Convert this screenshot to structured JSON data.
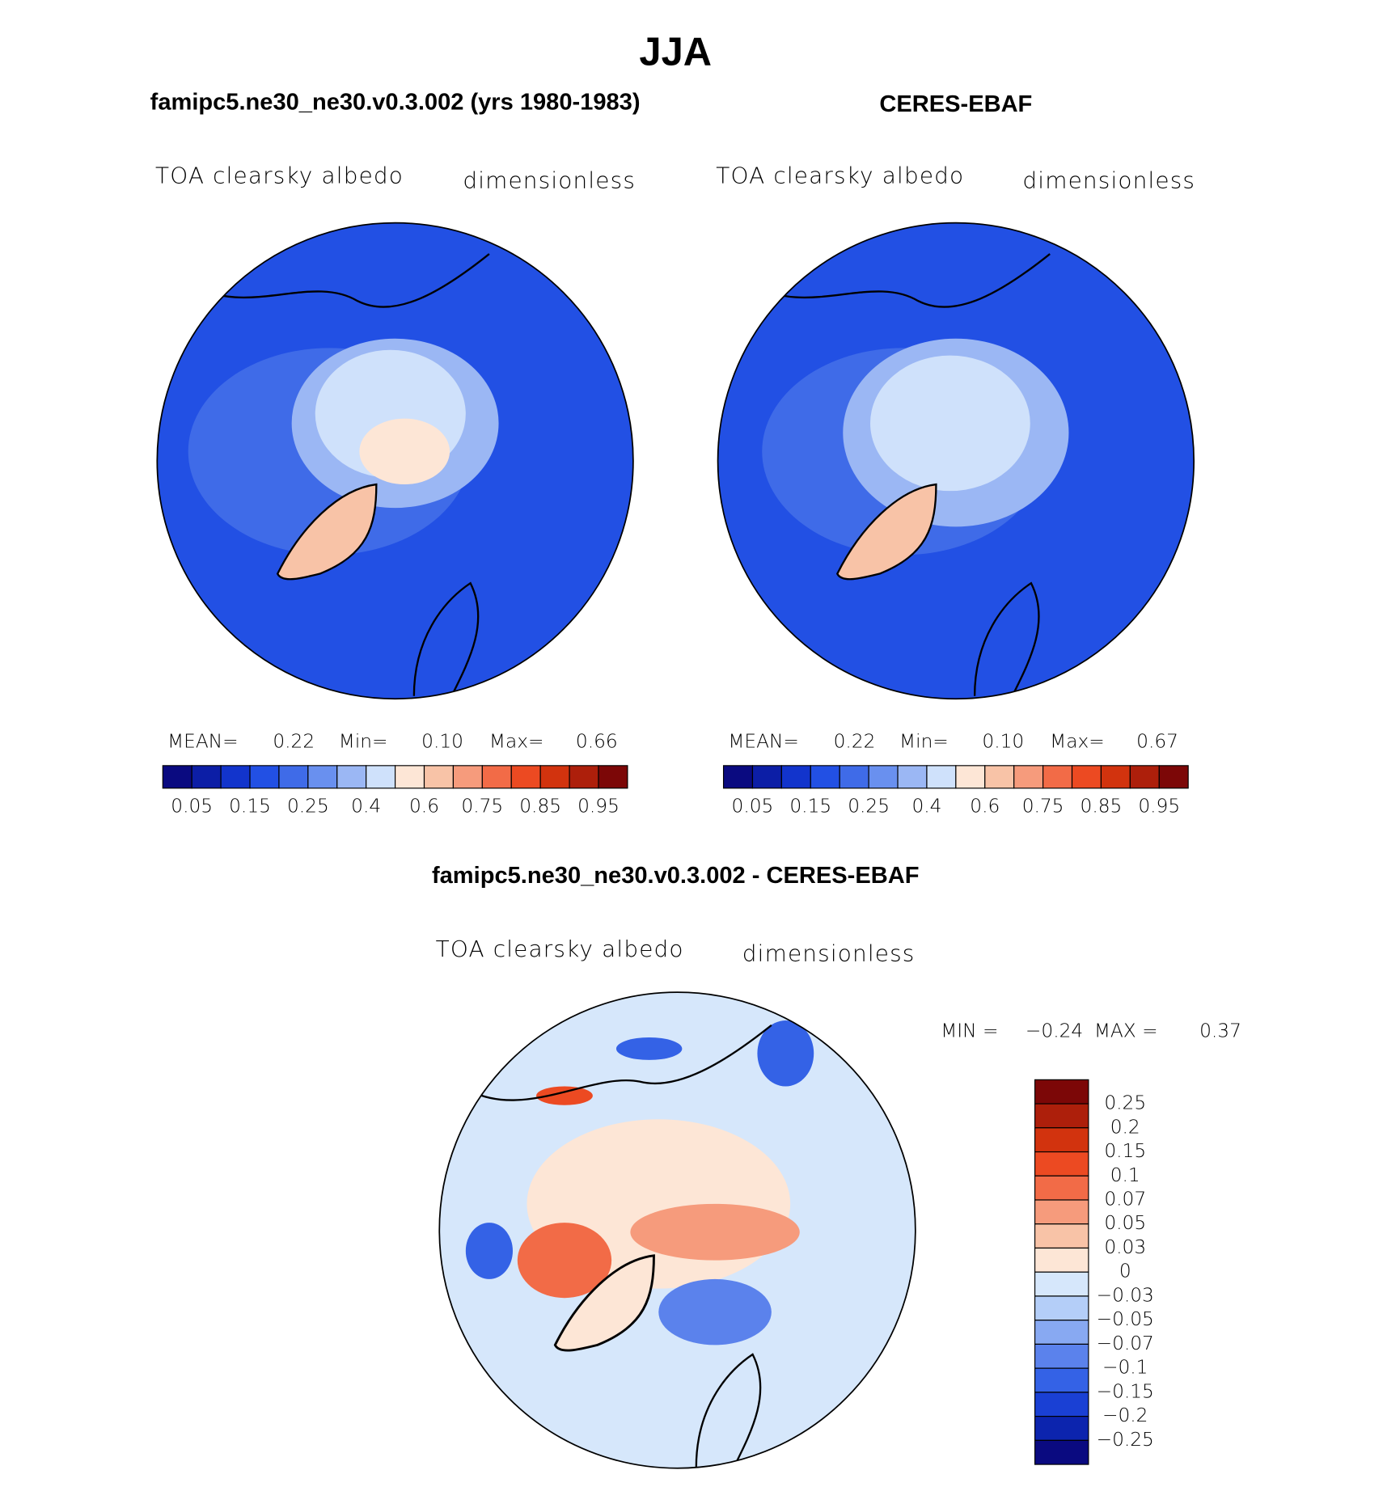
{
  "title": "JJA",
  "panels": [
    {
      "title": "famipc5.ne30_ne30.v0.3.002 (yrs 1980-1983)",
      "variable": "TOA clearsky albedo",
      "units": "dimensionless",
      "stats": [
        "MEAN=",
        "0.22",
        "Min=",
        "0.10",
        "Max=",
        "0.66"
      ]
    },
    {
      "title": "CERES-EBAF",
      "variable": "TOA clearsky albedo",
      "units": "dimensionless",
      "stats": [
        "MEAN=",
        "0.22",
        "Min=",
        "0.10",
        "Max=",
        "0.67"
      ]
    }
  ],
  "colorbar": {
    "labels": [
      "0.05",
      "0.15",
      "0.25",
      "0.4",
      "0.6",
      "0.75",
      "0.85",
      "0.95"
    ],
    "colors": [
      "#0a0a80",
      "#0c1ea6",
      "#1234cc",
      "#2250e4",
      "#3f6be8",
      "#6990ef",
      "#9bb7f4",
      "#cfe1fb",
      "#fde6d6",
      "#f8c3a7",
      "#f69b7c",
      "#f26b47",
      "#ec4a22",
      "#d2330e",
      "#ad1f0b",
      "#7c0707"
    ]
  },
  "difference": {
    "title": "famipc5.ne30_ne30.v0.3.002 - CERES-EBAF",
    "variable": "TOA clearsky albedo",
    "units": "dimensionless",
    "stats": [
      "MIN =",
      "−0.24",
      "MAX =",
      "0.37"
    ],
    "colorbar": {
      "labels": [
        "0.25",
        "0.2",
        "0.15",
        "0.1",
        "0.07",
        "0.05",
        "0.03",
        "0",
        "−0.03",
        "−0.05",
        "−0.07",
        "−0.1",
        "−0.15",
        "−0.2",
        "−0.25"
      ],
      "colors": [
        "#7c0707",
        "#ad1f0b",
        "#d2330e",
        "#ec4a22",
        "#f26b47",
        "#f69b7c",
        "#f8c3a7",
        "#fde6d6",
        "#d6e7fb",
        "#b4cef8",
        "#88a9f2",
        "#5b82ec",
        "#3462e6",
        "#1a40d4",
        "#0c24ae",
        "#0a0a80"
      ]
    }
  }
}
